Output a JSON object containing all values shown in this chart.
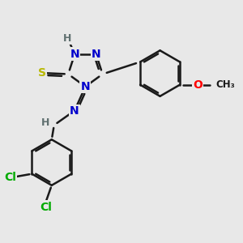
{
  "bg_color": "#e8e8e8",
  "bond_color": "#1a1a1a",
  "bond_width": 1.8,
  "atom_colors": {
    "N": "#0000cc",
    "S": "#b8b800",
    "O": "#ff0000",
    "Cl": "#00aa00",
    "H": "#607070",
    "C": "#1a1a1a"
  },
  "font_size": 10,
  "fig_width": 3.0,
  "fig_height": 3.0,
  "xlim": [
    0,
    10
  ],
  "ylim": [
    0,
    10
  ]
}
